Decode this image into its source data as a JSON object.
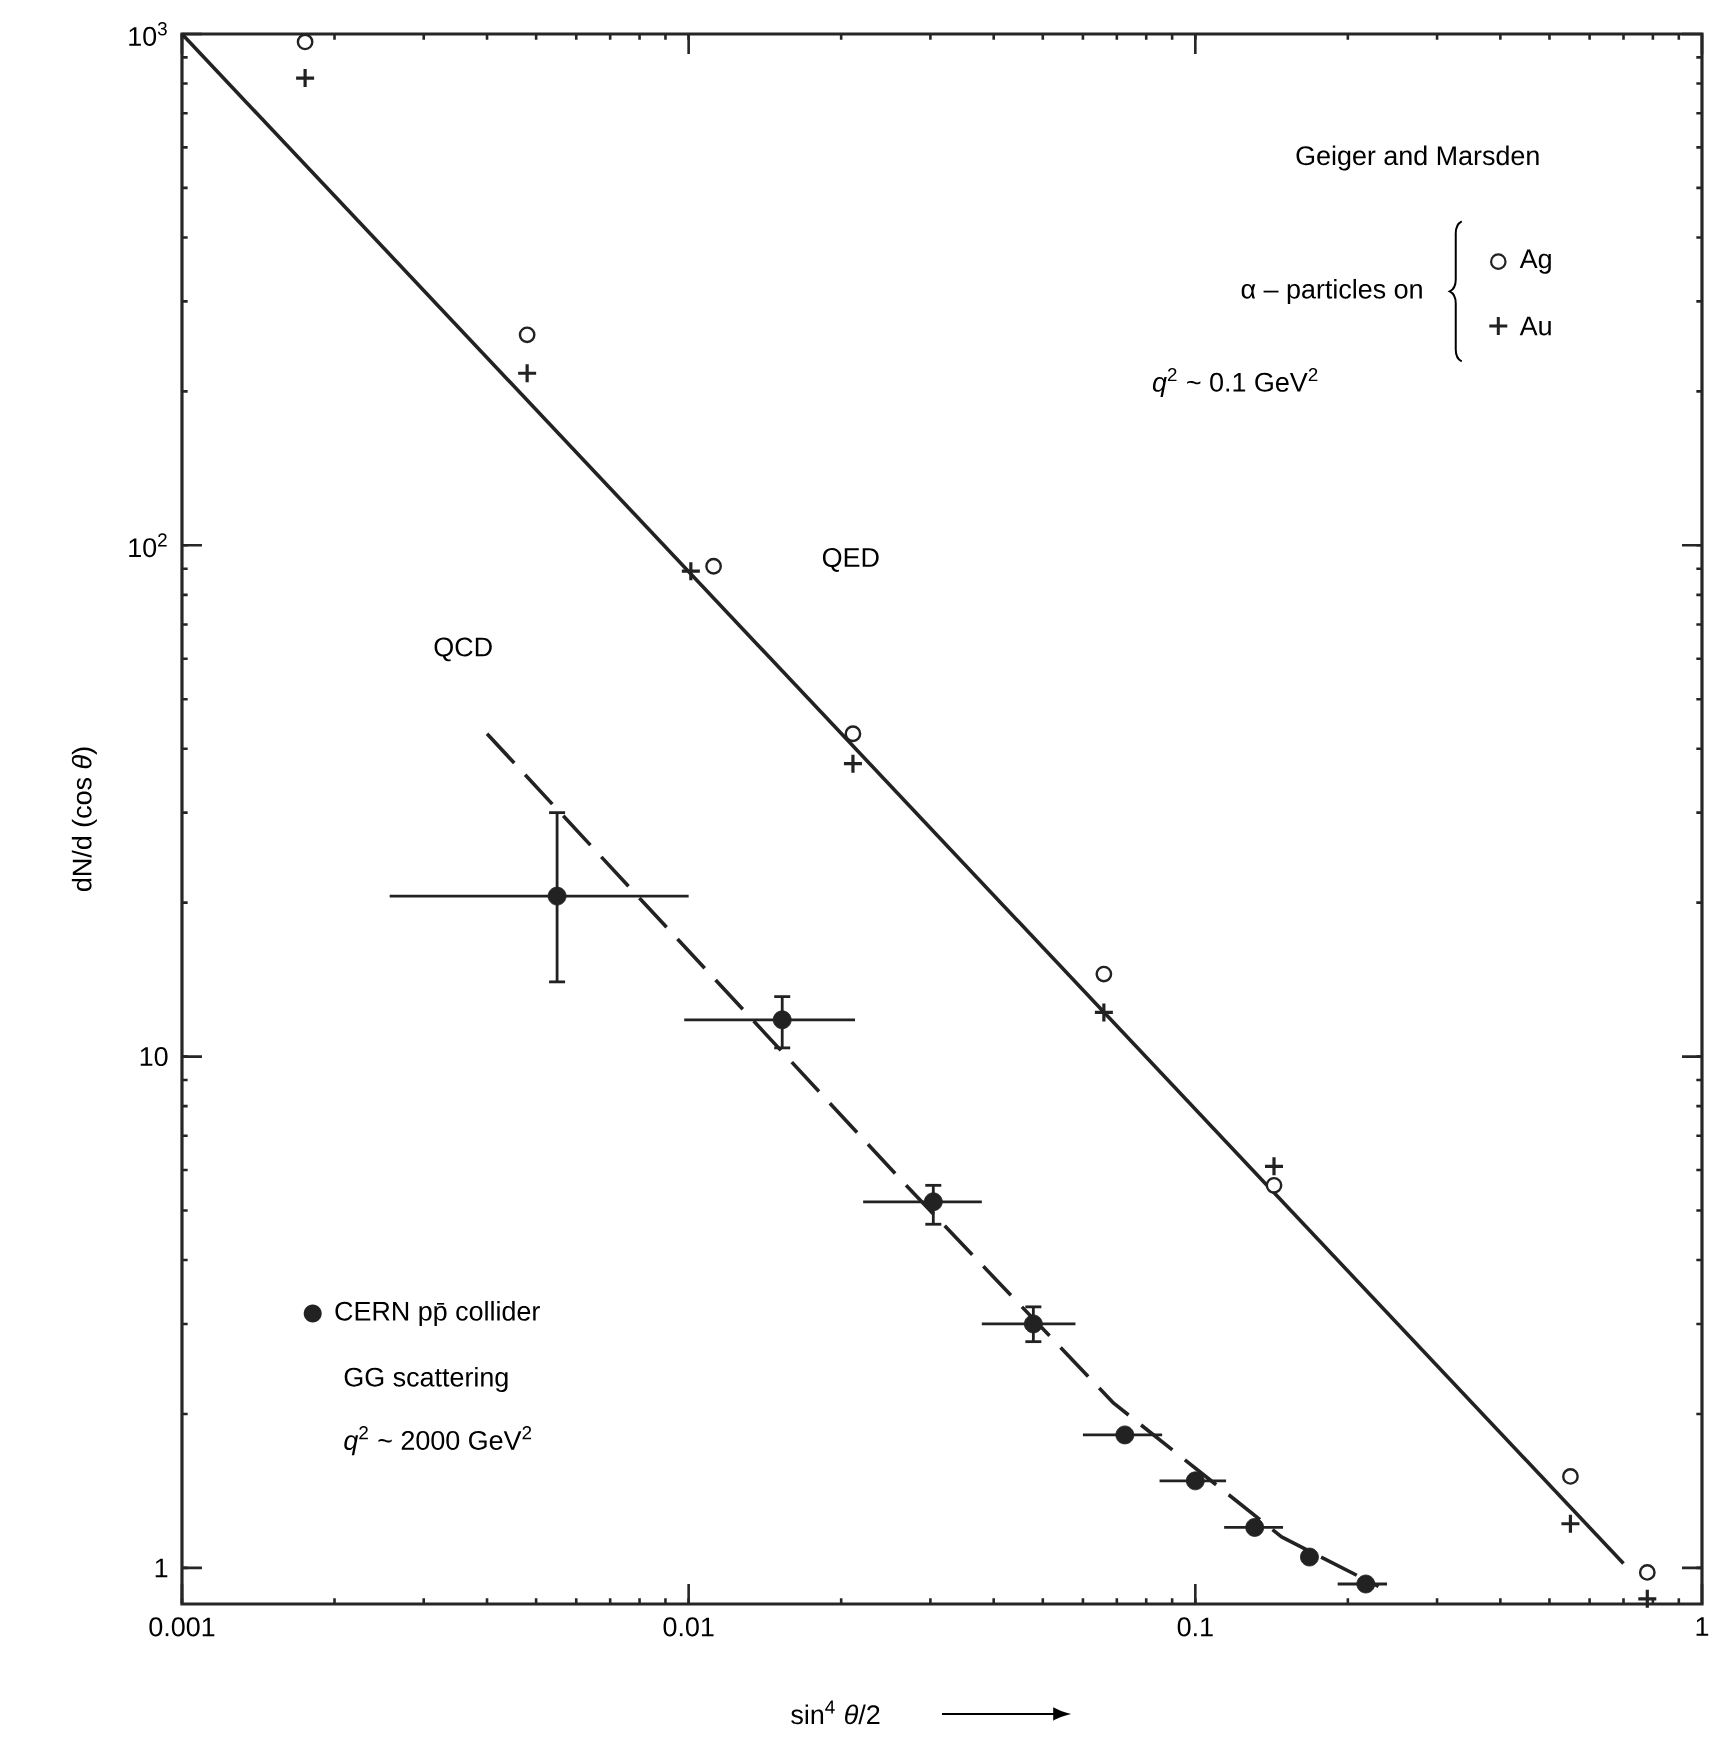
{
  "chart_data": {
    "type": "scatter",
    "xlabel": "sin$^{4}$ *θ*/2",
    "ylabel": "dN/d (cos *θ*)",
    "xlim": [
      0.001,
      1
    ],
    "ylim": [
      0.85,
      1000
    ],
    "log": "xy",
    "xticks": [
      0.001,
      0.01,
      0.1,
      1
    ],
    "yticks": [
      1,
      10,
      {
        "value": 100,
        "label": "10$^{2}$"
      },
      {
        "value": 1000,
        "label": "10$^{3}$"
      }
    ],
    "grid": false,
    "legend": "top right",
    "series": [
      {
        "name": "Ag",
        "marker": "circle",
        "color": "#222222",
        "x": [
          0.00175,
          0.0048,
          0.0112,
          0.0211,
          0.066,
          0.143,
          0.55,
          0.78
        ],
        "values": [
          965,
          258,
          91,
          42.8,
          14.5,
          5.6,
          1.51,
          0.98
        ]
      },
      {
        "name": "Au",
        "marker": "cross",
        "color": "#222222",
        "x": [
          0.00175,
          0.0048,
          0.0101,
          0.0211,
          0.066,
          0.143,
          0.55,
          0.78
        ],
        "values": [
          820,
          217,
          89,
          37.4,
          12.2,
          6.1,
          1.22,
          0.87
        ]
      },
      {
        "type": "line",
        "line_style": "solid",
        "color": "#222222",
        "x": [
          0.001,
          0.7
        ],
        "values": [
          1000,
          1.02
        ]
      },
      {
        "type": "line",
        "line_style": "dashed",
        "color": "#222222",
        "x": [
          0.004,
          0.0266,
          0.069,
          0.148,
          0.23
        ],
        "values": [
          42.8,
          5.66,
          2.1,
          1.15,
          0.92
        ]
      },
      {
        "name": "CERN pp̄ collider",
        "marker": "circle",
        "color": "#222222",
        "x": [
          0.0055,
          0.0153,
          0.0304,
          0.0479,
          0.0726,
          0.1,
          0.131,
          0.168,
          0.217
        ],
        "values": [
          20.6,
          11.8,
          5.2,
          3.0,
          1.82,
          1.48,
          1.2,
          1.05,
          0.93
        ],
        "errors": [
          [
            14.0,
            30
          ],
          [
            10.4,
            13.1
          ],
          [
            4.7,
            5.6
          ],
          [
            2.77,
            3.24
          ],
          null,
          null,
          null,
          null,
          null
        ],
        "xerrors": [
          [
            0.00257,
            0.01
          ],
          [
            0.0098,
            0.0213
          ],
          [
            0.0221,
            0.0379
          ],
          [
            0.0379,
            0.058
          ],
          [
            0.06,
            0.086
          ],
          [
            0.085,
            0.115
          ],
          [
            0.114,
            0.149
          ],
          null,
          [
            0.191,
            0.239
          ]
        ]
      }
    ],
    "annotations": [
      "QED",
      "QCD",
      "Geiger and Marsden",
      "α – particles on",
      "*q*$^{2}$ ~ 0.1 GeV$^{2}$",
      "GG scattering",
      "*q*$^{2}$ ~ 2000 GeV$^{2}$"
    ]
  }
}
